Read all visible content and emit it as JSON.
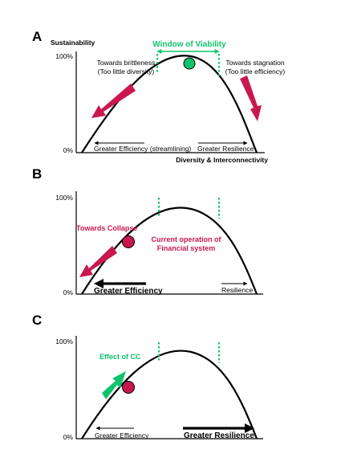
{
  "colors": {
    "green": "#10c36a",
    "crimson": "#c8184e",
    "black": "#000000"
  },
  "panel_a": {
    "letter": "A",
    "y_axis_label": "Sustainability",
    "x_axis_label": "Diversity & Interconnectivity",
    "tick_100": "100%",
    "tick_0": "0%",
    "window_label": "Window of Viability",
    "left_title": "Towards brittleness",
    "left_sub": "(Too little diversity)",
    "right_title": "Towards stagnation",
    "right_sub": "(Too little efficiency)",
    "efficiency_label": "Greater Efficiency (streamlining)",
    "resilience_label": "Greater Resilience"
  },
  "panel_b": {
    "letter": "B",
    "tick_100": "100%",
    "tick_0": "0%",
    "collapse_label": "Towards Collapse",
    "current_line1": "Current operation of",
    "current_line2": "Financial system",
    "efficiency_label": "Greater Efficiency",
    "resilience_label": "Resilience"
  },
  "panel_c": {
    "letter": "C",
    "tick_100": "100%",
    "tick_0": "0%",
    "effect_label": "Effect of CC",
    "efficiency_label": "Greater Efficiency",
    "resilience_label": "Greater Resilience"
  }
}
